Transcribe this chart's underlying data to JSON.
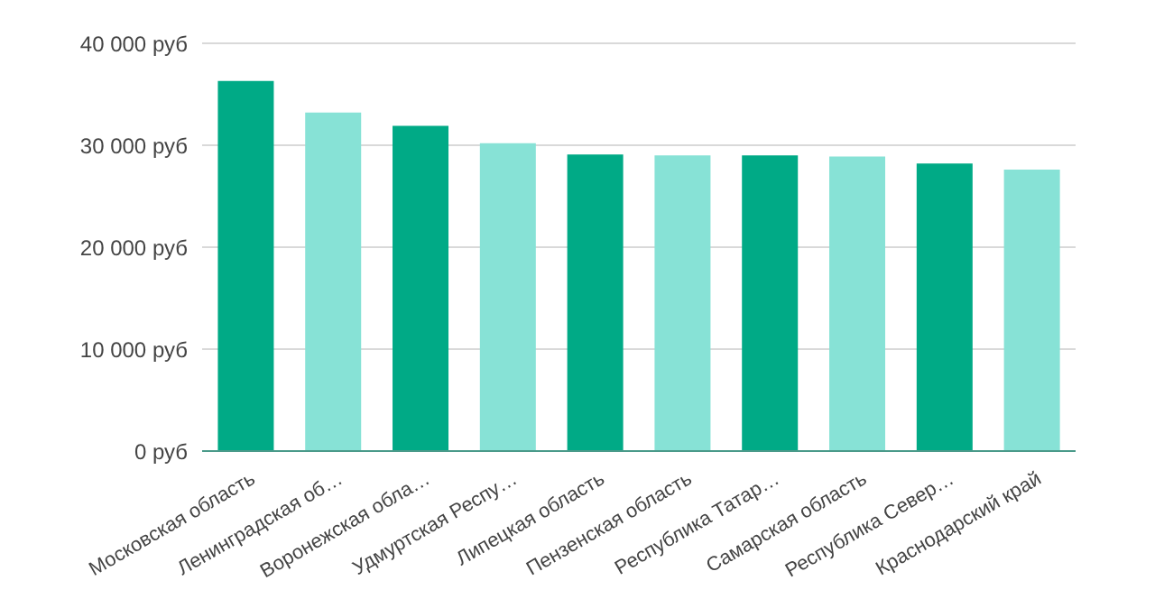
{
  "chart_data": {
    "type": "bar",
    "categories": [
      "Московская область",
      "Ленинградская об…",
      "Воронежская обла…",
      "Удмуртская Респу…",
      "Липецкая область",
      "Пензенская область",
      "Республика Татар…",
      "Самарская область",
      "Республика Север…",
      "Краснодарский край"
    ],
    "values": [
      36300,
      33200,
      31900,
      30200,
      29100,
      29000,
      29000,
      28900,
      28200,
      27600
    ],
    "colors": [
      "#00aa86",
      "#87e2d6",
      "#00aa86",
      "#87e2d6",
      "#00aa86",
      "#87e2d6",
      "#00aa86",
      "#87e2d6",
      "#00aa86",
      "#87e2d6"
    ],
    "ylim": [
      0,
      40000
    ],
    "yticks": [
      {
        "value": 0,
        "label": "0 руб"
      },
      {
        "value": 10000,
        "label": "10 000 руб"
      },
      {
        "value": 20000,
        "label": "20 000 руб"
      },
      {
        "value": 30000,
        "label": "30 000 руб"
      },
      {
        "value": 40000,
        "label": "40 000 руб"
      }
    ],
    "grid": "y"
  }
}
